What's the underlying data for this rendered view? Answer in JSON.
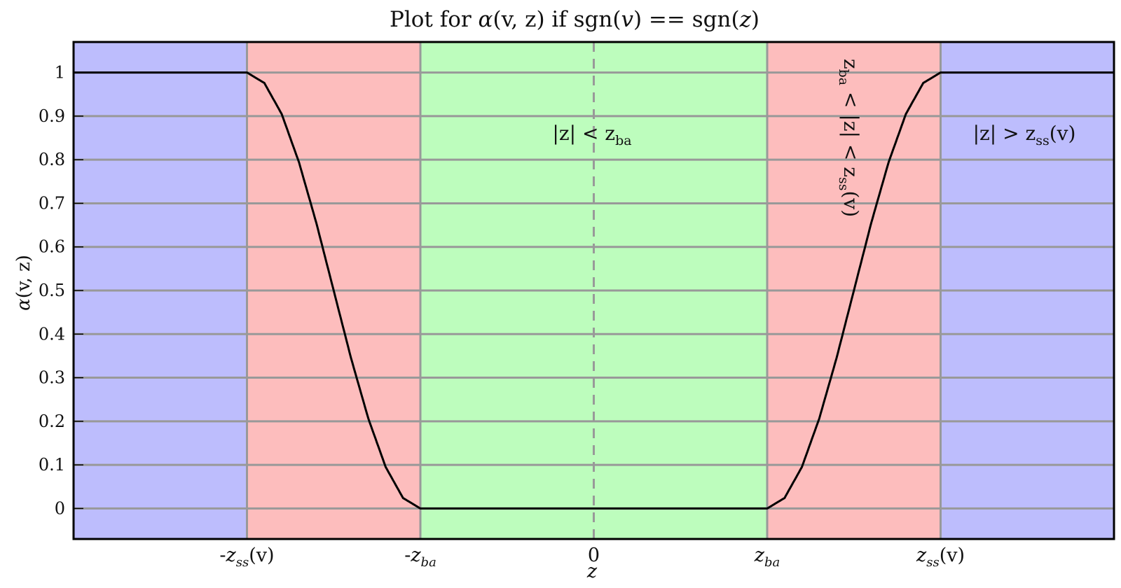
{
  "chart_data": {
    "type": "line",
    "title": {
      "prefix": "Plot for ",
      "alpha": "α",
      "args": "(v, z)",
      "mid": " if sgn(",
      "v": "v",
      "eq": ") == sgn(",
      "z": "z",
      "close": ")"
    },
    "xlabel": "z",
    "ylabel": {
      "alpha": "α",
      "args": "(v, z)"
    },
    "ylim": [
      -0.07,
      1.07
    ],
    "xlim": [
      -3,
      3
    ],
    "yticks": [
      "0",
      "0.1",
      "0.2",
      "0.3",
      "0.4",
      "0.5",
      "0.6",
      "0.7",
      "0.8",
      "0.9",
      "1"
    ],
    "ytick_values": [
      0,
      0.1,
      0.2,
      0.3,
      0.4,
      0.5,
      0.6,
      0.7,
      0.8,
      0.9,
      1
    ],
    "xticks": [
      {
        "value": -2,
        "prefix": "-",
        "base": "z",
        "sub": "ss",
        "suffix": "(v)"
      },
      {
        "value": -1,
        "prefix": "-",
        "base": "z",
        "sub": "ba",
        "suffix": ""
      },
      {
        "value": 0,
        "prefix": "",
        "base": "0",
        "sub": "",
        "suffix": ""
      },
      {
        "value": 1,
        "prefix": "",
        "base": "z",
        "sub": "ba",
        "suffix": ""
      },
      {
        "value": 2,
        "prefix": "",
        "base": "z",
        "sub": "ss",
        "suffix": "(v)"
      }
    ],
    "regions": [
      {
        "from": -3,
        "to": -2,
        "color": "#bdbdfd"
      },
      {
        "from": -2,
        "to": -1,
        "color": "#fdbdbd"
      },
      {
        "from": -1,
        "to": 1,
        "color": "#bdfdbd"
      },
      {
        "from": 1,
        "to": 2,
        "color": "#fdbdbd"
      },
      {
        "from": 2,
        "to": 3,
        "color": "#bdbdfd"
      }
    ],
    "region_labels": {
      "center": {
        "a": "|z| < z",
        "sub": "ba"
      },
      "right": {
        "a": "|z| > z",
        "sub": "ss",
        "b": "(v)"
      },
      "rotated": {
        "a": "z",
        "sub1": "ba",
        "b": " < |z| < z",
        "sub2": "ss",
        "c": "(v)"
      }
    },
    "series": [
      {
        "x": [
          -3,
          -2,
          -1.9,
          -1.8,
          -1.7,
          -1.6,
          -1.5,
          -1.4,
          -1.3,
          -1.2,
          -1.1,
          -1,
          0,
          1,
          1.1,
          1.2,
          1.3,
          1.4,
          1.5,
          1.6,
          1.7,
          1.8,
          1.9,
          2,
          3
        ],
        "y": [
          1,
          1,
          0.976,
          0.905,
          0.794,
          0.655,
          0.5,
          0.345,
          0.206,
          0.095,
          0.024,
          0,
          0,
          0,
          0.024,
          0.095,
          0.206,
          0.345,
          0.5,
          0.655,
          0.794,
          0.905,
          0.976,
          1,
          1
        ],
        "color": "#000000"
      }
    ],
    "dashed_vline_x": 0,
    "grid": true,
    "colors": {
      "grid": "#999999",
      "axes": "#000000",
      "dashed": "#999999"
    }
  }
}
